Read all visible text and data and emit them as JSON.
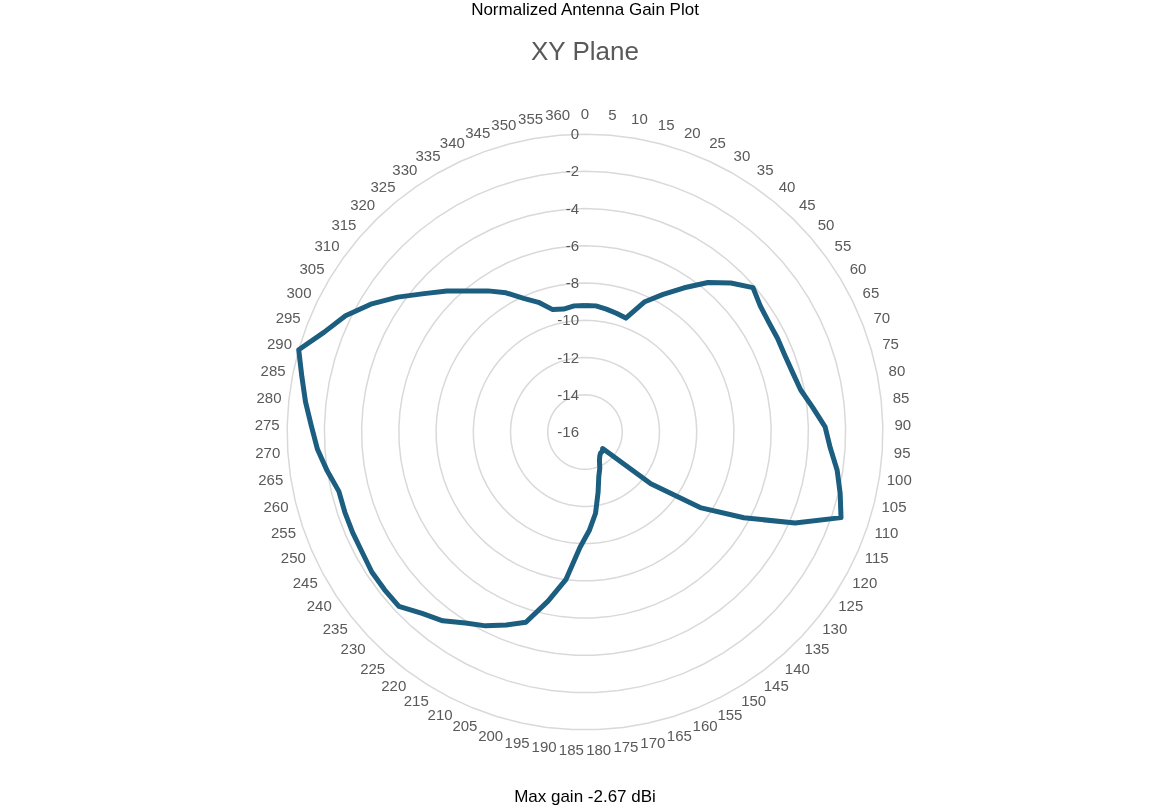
{
  "chart_data": {
    "type": "radar",
    "title": "Normalized Antenna Gain Plot",
    "subtitle": "XY Plane",
    "categories": [
      "0",
      "5",
      "10",
      "15",
      "20",
      "25",
      "30",
      "35",
      "40",
      "45",
      "50",
      "55",
      "60",
      "65",
      "70",
      "75",
      "80",
      "85",
      "90",
      "95",
      "100",
      "105",
      "110",
      "115",
      "120",
      "125",
      "130",
      "135",
      "140",
      "145",
      "150",
      "155",
      "160",
      "165",
      "170",
      "175",
      "180",
      "185",
      "190",
      "195",
      "200",
      "205",
      "210",
      "215",
      "220",
      "225",
      "230",
      "235",
      "240",
      "245",
      "250",
      "255",
      "260",
      "265",
      "270",
      "275",
      "280",
      "285",
      "290",
      "295",
      "300",
      "305",
      "310",
      "315",
      "320",
      "325",
      "330",
      "335",
      "340",
      "345",
      "350",
      "355",
      "360"
    ],
    "series": [
      {
        "color": "#1b5e80",
        "values": [
          -9.2,
          -9.2,
          -9.3,
          -9.4,
          -9.5,
          -8.3,
          -7.5,
          -6.6,
          -5.6,
          -4.8,
          -4.1,
          -4.4,
          -4.5,
          -4.5,
          -4.5,
          -4.4,
          -4.2,
          -3.7,
          -3.1,
          -2.8,
          -2.3,
          -1.9,
          -1.5,
          -3.7,
          -6.3,
          -8.6,
          -11.5,
          -14.7,
          -14.6,
          -14.6,
          -14.5,
          -14.3,
          -13.9,
          -13.5,
          -12.7,
          -11.6,
          -10.7,
          -9.8,
          -8.0,
          -6.7,
          -5.3,
          -4.8,
          -4.3,
          -3.9,
          -3.3,
          -2.9,
          -2.3,
          -2.3,
          -2.3,
          -2.4,
          -2.4,
          -2.4,
          -2.4,
          -2.0,
          -1.6,
          -1.3,
          -0.9,
          -0.5,
          0,
          -1.0,
          -1.7,
          -2.6,
          -3.6,
          -4.6,
          -5.4,
          -6.2,
          -6.8,
          -7.4,
          -8.1,
          -8.6,
          -9.2,
          -9.3,
          -9.2
        ]
      }
    ],
    "ylim": [
      -16,
      0
    ],
    "yticks": [
      -16,
      -14,
      -12,
      -10,
      -8,
      -6,
      -4,
      -2,
      0
    ],
    "grid": true,
    "annotations": [
      "Max gain          -2.67     dBi"
    ]
  }
}
